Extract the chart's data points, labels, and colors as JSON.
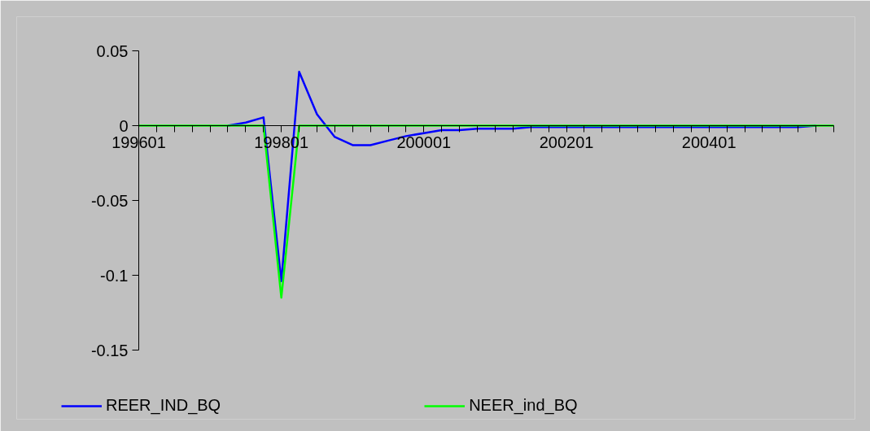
{
  "chart_data": {
    "type": "line",
    "categories": [
      "199601",
      null,
      null,
      null,
      null,
      null,
      null,
      null,
      "199801",
      null,
      null,
      null,
      null,
      null,
      null,
      null,
      "200001",
      null,
      null,
      null,
      null,
      null,
      null,
      null,
      "200201",
      null,
      null,
      null,
      null,
      null,
      null,
      null,
      "200401",
      null,
      null,
      null,
      null,
      null,
      null,
      null
    ],
    "series": [
      {
        "name": "REER_IND_BQ",
        "color": "#0000ff",
        "values": [
          null,
          null,
          null,
          null,
          null,
          0,
          0.002,
          0.0055,
          -0.104,
          0.036,
          0.0076,
          -0.0076,
          -0.013,
          -0.013,
          -0.01,
          -0.007,
          -0.005,
          -0.003,
          -0.003,
          -0.002,
          -0.002,
          -0.002,
          -0.001,
          -0.001,
          -0.001,
          -0.001,
          -0.001,
          -0.001,
          -0.001,
          -0.001,
          -0.001,
          -0.001,
          -0.001,
          -0.001,
          -0.001,
          -0.001,
          -0.001,
          -0.001,
          0,
          null
        ]
      },
      {
        "name": "NEER_ind_BQ",
        "color": "#00ff00",
        "values": [
          0,
          0,
          0,
          0,
          0,
          0,
          0,
          0,
          -0.115,
          0,
          0,
          0,
          0,
          0,
          0,
          0,
          0,
          0,
          0,
          0,
          0,
          0,
          0,
          0,
          0,
          0,
          0,
          0,
          0,
          0,
          0,
          0,
          0,
          0,
          0,
          0,
          0,
          0,
          0,
          0
        ]
      }
    ],
    "ylim": [
      -0.15,
      0.05
    ],
    "yticks": [
      {
        "value": 0.05,
        "label": "0.05"
      },
      0,
      {
        "value": -0.05,
        "label": "-0.05"
      },
      {
        "value": -0.1,
        "label": "-0.1"
      },
      {
        "value": -0.15,
        "label": "-0.15"
      }
    ],
    "grid": false,
    "legend": "bottom",
    "marker": "none",
    "line_style": "solid"
  }
}
